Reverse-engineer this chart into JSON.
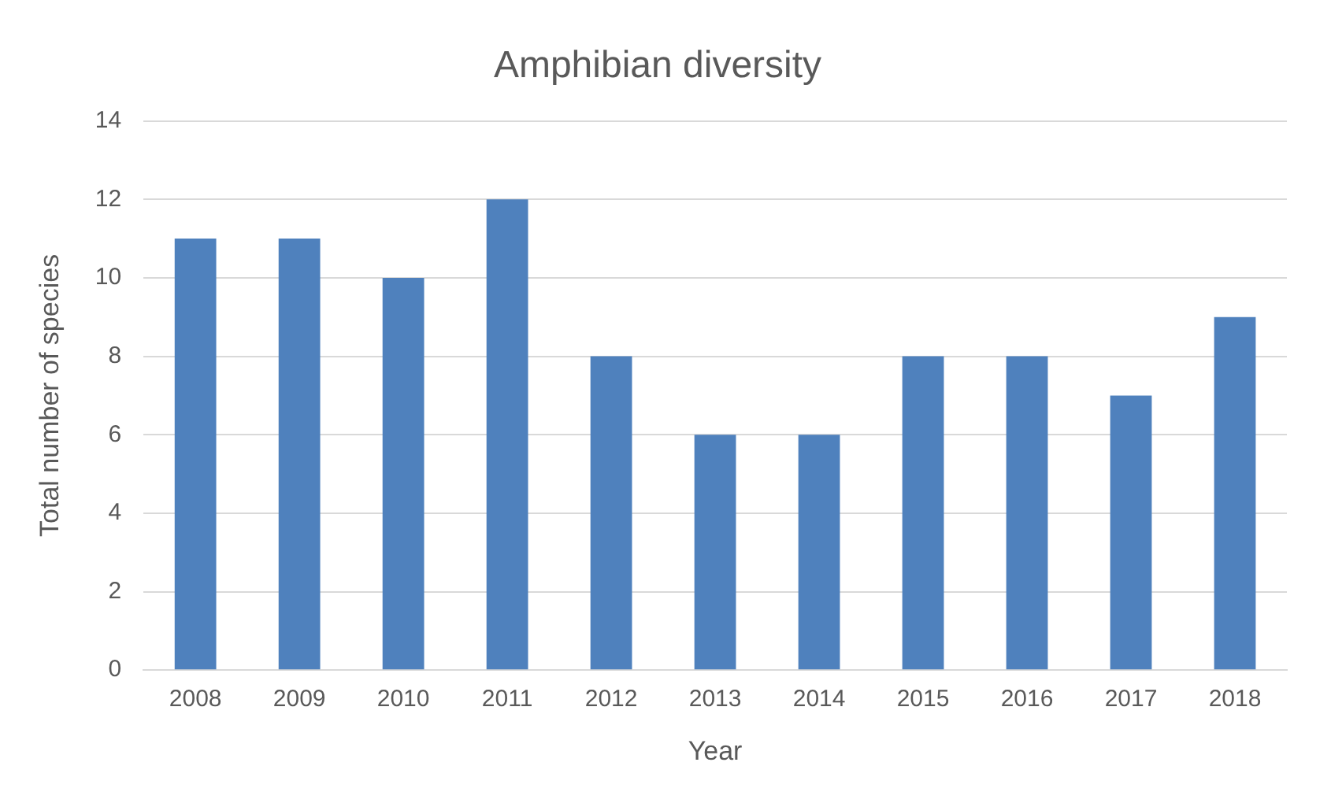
{
  "chart_data": {
    "type": "bar",
    "title": "Amphibian diversity",
    "xlabel": "Year",
    "ylabel": "Total number of species",
    "categories": [
      "2008",
      "2009",
      "2010",
      "2011",
      "2012",
      "2013",
      "2014",
      "2015",
      "2016",
      "2017",
      "2018"
    ],
    "values": [
      11,
      11,
      10,
      12,
      8,
      6,
      6,
      8,
      8,
      7,
      9
    ],
    "color": "#4f81bd",
    "ylim": [
      0,
      14
    ],
    "yticks": [
      0,
      2,
      4,
      6,
      8,
      10,
      12,
      14
    ],
    "grid": "y",
    "legend": false
  }
}
